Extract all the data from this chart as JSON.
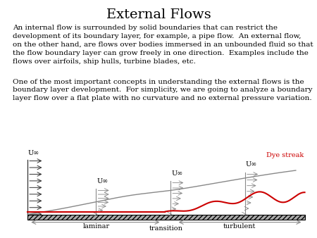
{
  "title": "External Flows",
  "title_fontsize": 14,
  "para1": "An internal flow is surrounded by solid boundaries that can restrict the\ndevelopment of its boundary layer, for example, a pipe flow.  An external flow,\non the other hand, are flows over bodies immersed in an unbounded fluid so that\nthe flow boundary layer can grow freely in one direction.  Examples include the\nflows over airfoils, ship hulls, turbine blades, etc.",
  "para2": "One of the most important concepts in understanding the external flows is the\nboundary layer development.  For simplicity, we are going to analyze a boundary\nlayer flow over a flat plate with no curvature and no external pressure variation.",
  "text_fontsize": 7.5,
  "background_color": "#ffffff",
  "plate_color": "#aaaaaa",
  "line_color": "#888888",
  "arrow_color": "#333333",
  "red_color": "#cc0000",
  "dye_streak_label": "Dye streak",
  "label_laminar": "laminar",
  "label_transition": "transition",
  "label_turbulent": "turbulent",
  "U_inf_label": "U∞"
}
